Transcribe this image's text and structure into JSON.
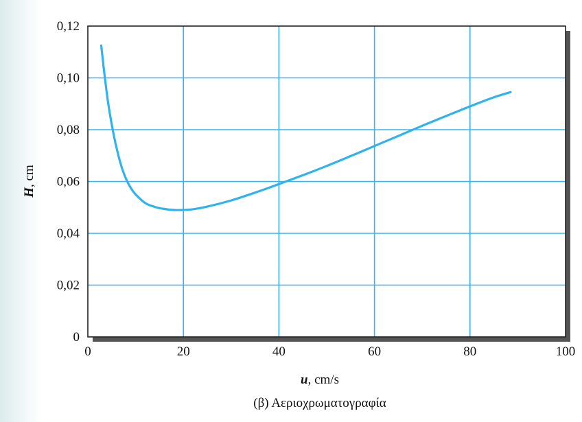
{
  "chart_data": {
    "type": "line",
    "xlabel_var": "u",
    "xlabel_unit": ", cm/s",
    "ylabel_var": "H",
    "ylabel_unit": ", cm",
    "caption": "(β) Αεριοχρωματογραφία",
    "xlim": [
      0,
      100
    ],
    "ylim": [
      0,
      0.12
    ],
    "x_ticks": [
      "0",
      "20",
      "40",
      "60",
      "80",
      "100"
    ],
    "y_ticks": [
      "0",
      "0,02",
      "0,04",
      "0,06",
      "0,08",
      "0,10",
      "0,12"
    ],
    "grid": true,
    "colors": {
      "line": "#2fb3ea",
      "grid": "#35b5ec",
      "frame": "#222222",
      "shadow": "#555555"
    },
    "series": [
      {
        "x": [
          2.8,
          3.5,
          4.2,
          5,
          6,
          7,
          8,
          9,
          10,
          12,
          14,
          16,
          18,
          20,
          22,
          25,
          30,
          35,
          40,
          45,
          50,
          55,
          60,
          65,
          70,
          75,
          80,
          85,
          88.5
        ],
        "y": [
          0.1125,
          0.101,
          0.091,
          0.082,
          0.073,
          0.066,
          0.061,
          0.0575,
          0.055,
          0.0517,
          0.0502,
          0.0494,
          0.049,
          0.049,
          0.0493,
          0.0503,
          0.0527,
          0.0557,
          0.059,
          0.0624,
          0.066,
          0.0698,
          0.0737,
          0.0776,
          0.0815,
          0.0853,
          0.089,
          0.0925,
          0.0945
        ]
      }
    ]
  }
}
